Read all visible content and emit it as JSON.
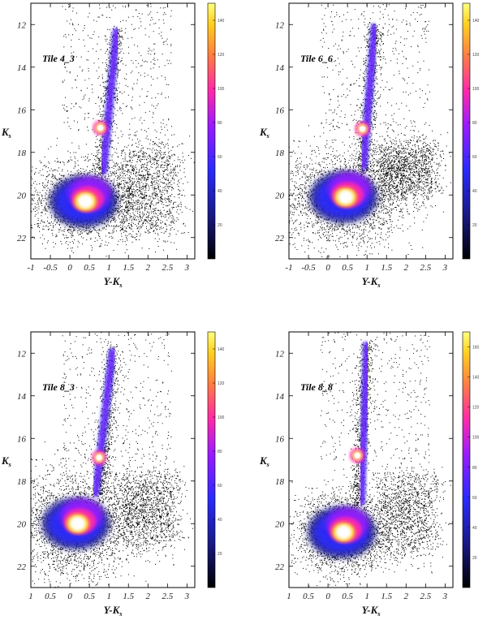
{
  "chart_data": [
    {
      "type": "heatmap",
      "tile": "Tile 4_3",
      "xlabel": "Y-K",
      "xlabel_sub": "s",
      "ylabel": "K",
      "ylabel_sub": "s",
      "xlim": [
        -1,
        3.2
      ],
      "ylim": [
        23,
        11
      ],
      "x_ticks": [
        "-1",
        "-0.5",
        "0",
        "0.5",
        "1",
        "1.5",
        "2",
        "2.5",
        "3"
      ],
      "y_ticks": [
        "12",
        "14",
        "16",
        "18",
        "20",
        "22"
      ],
      "colorbar_ticks": [
        "20",
        "40",
        "60",
        "80",
        "100",
        "120",
        "140"
      ],
      "colorbar_range": [
        0,
        150
      ]
    },
    {
      "type": "heatmap",
      "tile": "Tile 6_6",
      "xlabel": "Y-K",
      "xlabel_sub": "s",
      "ylabel": "K",
      "ylabel_sub": "s",
      "xlim": [
        -1,
        3.2
      ],
      "ylim": [
        23,
        11
      ],
      "x_ticks": [
        "-1",
        "-0.5",
        "0",
        "0.5",
        "1",
        "1.5",
        "2",
        "2.5",
        "3"
      ],
      "y_ticks": [
        "12",
        "14",
        "16",
        "18",
        "20",
        "22"
      ],
      "colorbar_ticks": [
        "20",
        "40",
        "60",
        "80",
        "100",
        "120",
        "140"
      ],
      "colorbar_range": [
        0,
        150
      ]
    },
    {
      "type": "heatmap",
      "tile": "Tile 8_3",
      "xlabel": "Y-K",
      "xlabel_sub": "s",
      "ylabel": "K",
      "ylabel_sub": "s",
      "xlim": [
        -1,
        3.2
      ],
      "ylim": [
        23,
        11
      ],
      "x_ticks": [
        "1",
        "0.5",
        "0",
        "0.5",
        "1",
        "1.5",
        "2",
        "2.5",
        "3"
      ],
      "y_ticks": [
        "12",
        "14",
        "16",
        "18",
        "20",
        "22"
      ],
      "colorbar_ticks": [
        "20",
        "40",
        "60",
        "80",
        "100",
        "120",
        "140"
      ],
      "colorbar_range": [
        0,
        150
      ]
    },
    {
      "type": "heatmap",
      "tile": "Tile 8_8",
      "xlabel": "Y-K",
      "xlabel_sub": "s",
      "ylabel": "K",
      "ylabel_sub": "s",
      "xlim": [
        -1,
        3.2
      ],
      "ylim": [
        23,
        11
      ],
      "x_ticks": [
        "1",
        "0.5",
        "0",
        "0.5",
        "1",
        "1.5",
        "2",
        "2.5",
        "3"
      ],
      "y_ticks": [
        "12",
        "14",
        "16",
        "18",
        "20",
        "22"
      ],
      "colorbar_ticks": [
        "20",
        "40",
        "60",
        "80",
        "100",
        "120",
        "140",
        "160"
      ],
      "colorbar_range": [
        0,
        170
      ]
    }
  ]
}
